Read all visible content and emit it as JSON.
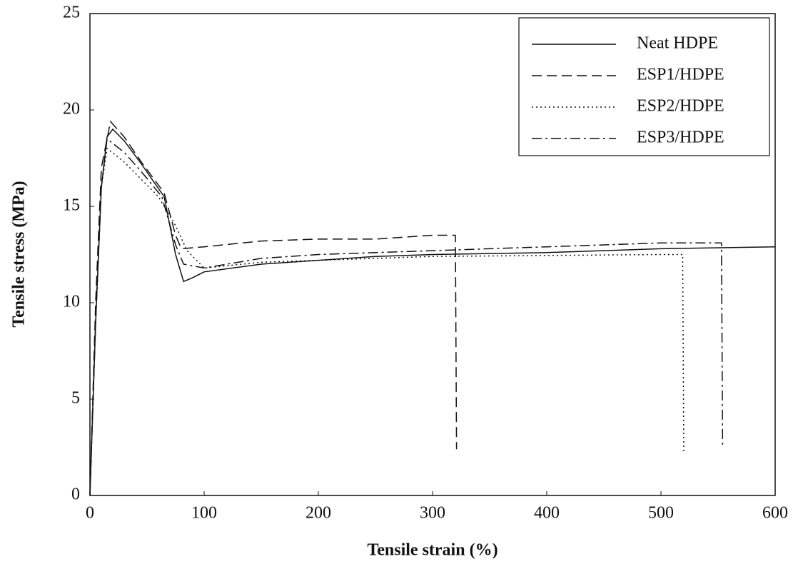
{
  "chart_data": {
    "type": "line",
    "x_label": "Tensile strain (%)",
    "y_label": "Tensile stress (MPa)",
    "xlim": [
      0,
      600
    ],
    "ylim": [
      0,
      25
    ],
    "xticks": [
      0,
      100,
      200,
      300,
      400,
      500,
      600
    ],
    "yticks": [
      0,
      5,
      10,
      15,
      20,
      25
    ],
    "legend": "upper right",
    "series": [
      {
        "name": "Neat HDPE",
        "color": "#111111",
        "dash": "solid",
        "x": [
          0,
          5,
          10,
          15,
          20,
          30,
          45,
          65,
          75,
          82,
          90,
          100,
          150,
          200,
          250,
          300,
          400,
          500,
          600
        ],
        "values": [
          0,
          9,
          16,
          18.6,
          19.0,
          18.4,
          17.2,
          15.5,
          12.5,
          11.1,
          11.3,
          11.6,
          12.0,
          12.2,
          12.4,
          12.5,
          12.6,
          12.8,
          12.9
        ]
      },
      {
        "name": "ESP1/HDPE",
        "color": "#111111",
        "dash": "dashed",
        "x": [
          0,
          5,
          10,
          18,
          30,
          45,
          65,
          75,
          80,
          100,
          150,
          200,
          250,
          300,
          320,
          321
        ],
        "values": [
          0,
          10,
          17,
          19.4,
          18.6,
          17.3,
          15.7,
          13.5,
          12.8,
          12.9,
          13.2,
          13.3,
          13.3,
          13.5,
          13.5,
          2.4
        ]
      },
      {
        "name": "ESP2/HDPE",
        "color": "#111111",
        "dash": "dotted",
        "x": [
          0,
          5,
          10,
          15,
          30,
          45,
          60,
          75,
          85,
          100,
          150,
          250,
          300,
          500,
          519,
          520
        ],
        "values": [
          0,
          9,
          16,
          18.0,
          17.3,
          16.4,
          15.5,
          14.0,
          12.7,
          11.8,
          12.1,
          12.3,
          12.4,
          12.5,
          12.5,
          2.2
        ]
      },
      {
        "name": "ESP3/HDPE",
        "color": "#111111",
        "dash": "dashdot",
        "x": [
          0,
          5,
          10,
          15,
          30,
          45,
          63,
          75,
          82,
          100,
          150,
          200,
          300,
          400,
          500,
          553,
          554
        ],
        "values": [
          0,
          9,
          16,
          18.5,
          17.8,
          16.8,
          15.5,
          13.0,
          12.0,
          11.8,
          12.3,
          12.5,
          12.7,
          12.9,
          13.1,
          13.1,
          2.5
        ]
      }
    ]
  }
}
